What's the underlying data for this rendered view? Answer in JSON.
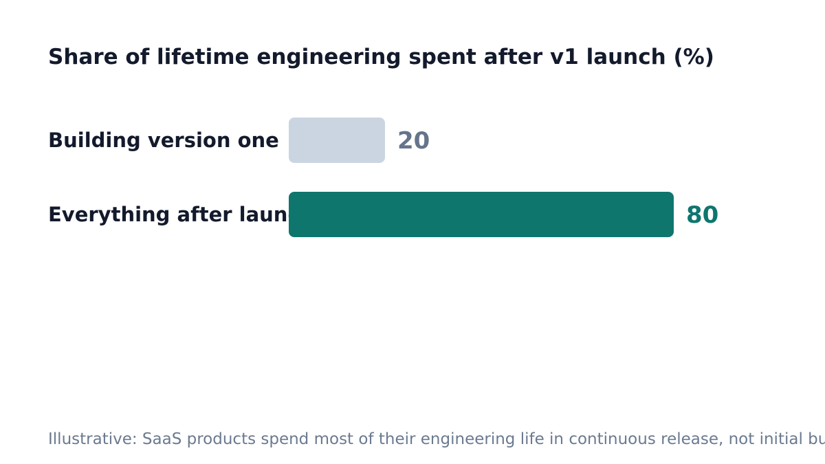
{
  "chart_data": {
    "type": "bar",
    "orientation": "horizontal",
    "title": "Share of lifetime engineering spent after v1 launch (%)",
    "categories": [
      "Building version one",
      "Everything after launch"
    ],
    "values": [
      20,
      80
    ],
    "value_labels": [
      "20",
      "80"
    ],
    "colors": [
      "#cbd5e1",
      "#0f766e"
    ],
    "label_colors": [
      "#64748b",
      "#0f766e"
    ],
    "xlim": [
      0,
      100
    ],
    "grid": false,
    "xlabel": "",
    "ylabel": ""
  },
  "footnote": "Illustrative: SaaS products spend most of their engineering life in continuous release, not initial build."
}
